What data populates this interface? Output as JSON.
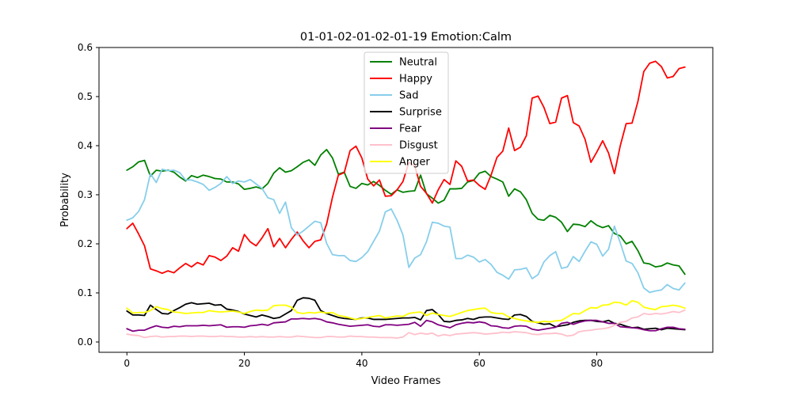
{
  "chart_data": {
    "type": "line",
    "title": "01-01-02-01-02-01-19 Emotion:Calm",
    "xlabel": "Video Frames",
    "ylabel": "Probability",
    "xlim": [
      -4.75,
      99.75
    ],
    "ylim": [
      -0.021,
      0.6
    ],
    "xticks": [
      0,
      20,
      40,
      60,
      80
    ],
    "yticks": [
      0.0,
      0.1,
      0.2,
      0.3,
      0.4,
      0.5,
      0.6
    ],
    "ytick_labels": [
      "0.0",
      "0.1",
      "0.2",
      "0.3",
      "0.4",
      "0.5",
      "0.6"
    ],
    "grid": false,
    "legend_position": "upper center",
    "x": [
      0,
      1,
      2,
      3,
      4,
      5,
      6,
      7,
      8,
      9,
      10,
      11,
      12,
      13,
      14,
      15,
      16,
      17,
      18,
      19,
      20,
      21,
      22,
      23,
      24,
      25,
      26,
      27,
      28,
      29,
      30,
      31,
      32,
      33,
      34,
      35,
      36,
      37,
      38,
      39,
      40,
      41,
      42,
      43,
      44,
      45,
      46,
      47,
      48,
      49,
      50,
      51,
      52,
      53,
      54,
      55,
      56,
      57,
      58,
      59,
      60,
      61,
      62,
      63,
      64,
      65,
      66,
      67,
      68,
      69,
      70,
      71,
      72,
      73,
      74,
      75,
      76,
      77,
      78,
      79,
      80,
      81,
      82,
      83,
      84,
      85,
      86,
      87,
      88,
      89,
      90,
      91,
      92,
      93,
      94,
      95
    ],
    "series": [
      {
        "name": "Neutral",
        "color": "#008000",
        "values": [
          0.35,
          0.357,
          0.367,
          0.37,
          0.338,
          0.35,
          0.348,
          0.35,
          0.346,
          0.336,
          0.328,
          0.339,
          0.335,
          0.34,
          0.337,
          0.333,
          0.332,
          0.326,
          0.326,
          0.322,
          0.311,
          0.313,
          0.316,
          0.312,
          0.323,
          0.344,
          0.355,
          0.346,
          0.349,
          0.357,
          0.366,
          0.371,
          0.36,
          0.381,
          0.392,
          0.375,
          0.342,
          0.346,
          0.317,
          0.313,
          0.323,
          0.32,
          0.327,
          0.319,
          0.309,
          0.301,
          0.31,
          0.305,
          0.307,
          0.308,
          0.34,
          0.302,
          0.293,
          0.283,
          0.289,
          0.312,
          0.312,
          0.313,
          0.326,
          0.329,
          0.344,
          0.348,
          0.337,
          0.332,
          0.326,
          0.297,
          0.312,
          0.306,
          0.29,
          0.262,
          0.25,
          0.248,
          0.258,
          0.254,
          0.244,
          0.225,
          0.24,
          0.239,
          0.235,
          0.247,
          0.238,
          0.233,
          0.237,
          0.221,
          0.216,
          0.2,
          0.205,
          0.186,
          0.161,
          0.159,
          0.153,
          0.155,
          0.161,
          0.157,
          0.155,
          0.138
        ]
      },
      {
        "name": "Happy",
        "color": "#ff0000",
        "values": [
          0.231,
          0.242,
          0.22,
          0.196,
          0.149,
          0.145,
          0.14,
          0.145,
          0.141,
          0.151,
          0.16,
          0.153,
          0.162,
          0.157,
          0.176,
          0.173,
          0.166,
          0.175,
          0.192,
          0.185,
          0.219,
          0.204,
          0.196,
          0.212,
          0.231,
          0.194,
          0.211,
          0.192,
          0.209,
          0.224,
          0.206,
          0.192,
          0.205,
          0.208,
          0.24,
          0.295,
          0.34,
          0.345,
          0.39,
          0.399,
          0.375,
          0.332,
          0.318,
          0.33,
          0.297,
          0.298,
          0.31,
          0.327,
          0.366,
          0.359,
          0.317,
          0.303,
          0.283,
          0.31,
          0.331,
          0.321,
          0.369,
          0.358,
          0.328,
          0.33,
          0.319,
          0.311,
          0.34,
          0.376,
          0.389,
          0.436,
          0.39,
          0.397,
          0.42,
          0.497,
          0.501,
          0.478,
          0.445,
          0.448,
          0.497,
          0.502,
          0.447,
          0.44,
          0.413,
          0.366,
          0.387,
          0.41,
          0.385,
          0.343,
          0.4,
          0.445,
          0.446,
          0.49,
          0.551,
          0.568,
          0.572,
          0.561,
          0.538,
          0.541,
          0.557,
          0.56
        ]
      },
      {
        "name": "Sad",
        "color": "#87ceeb",
        "values": [
          0.248,
          0.253,
          0.266,
          0.29,
          0.343,
          0.325,
          0.352,
          0.349,
          0.35,
          0.345,
          0.33,
          0.33,
          0.326,
          0.321,
          0.309,
          0.315,
          0.323,
          0.337,
          0.323,
          0.328,
          0.326,
          0.331,
          0.322,
          0.313,
          0.294,
          0.29,
          0.262,
          0.285,
          0.233,
          0.218,
          0.226,
          0.236,
          0.246,
          0.243,
          0.201,
          0.178,
          0.176,
          0.176,
          0.166,
          0.164,
          0.172,
          0.184,
          0.205,
          0.226,
          0.265,
          0.271,
          0.248,
          0.218,
          0.152,
          0.171,
          0.178,
          0.204,
          0.244,
          0.242,
          0.236,
          0.234,
          0.17,
          0.17,
          0.177,
          0.173,
          0.163,
          0.168,
          0.158,
          0.142,
          0.136,
          0.128,
          0.147,
          0.148,
          0.151,
          0.129,
          0.137,
          0.163,
          0.176,
          0.184,
          0.15,
          0.153,
          0.174,
          0.164,
          0.185,
          0.204,
          0.199,
          0.175,
          0.189,
          0.236,
          0.202,
          0.165,
          0.16,
          0.141,
          0.11,
          0.101,
          0.104,
          0.106,
          0.117,
          0.109,
          0.106,
          0.12
        ]
      },
      {
        "name": "Surprise",
        "color": "#000000",
        "values": [
          0.063,
          0.055,
          0.055,
          0.054,
          0.075,
          0.066,
          0.058,
          0.057,
          0.064,
          0.07,
          0.077,
          0.08,
          0.077,
          0.078,
          0.079,
          0.075,
          0.076,
          0.067,
          0.065,
          0.062,
          0.057,
          0.054,
          0.051,
          0.055,
          0.052,
          0.048,
          0.05,
          0.057,
          0.064,
          0.085,
          0.09,
          0.089,
          0.085,
          0.064,
          0.058,
          0.054,
          0.05,
          0.048,
          0.047,
          0.046,
          0.049,
          0.049,
          0.046,
          0.046,
          0.046,
          0.047,
          0.048,
          0.049,
          0.049,
          0.05,
          0.045,
          0.064,
          0.066,
          0.056,
          0.042,
          0.041,
          0.044,
          0.045,
          0.048,
          0.046,
          0.05,
          0.051,
          0.051,
          0.049,
          0.047,
          0.046,
          0.055,
          0.056,
          0.052,
          0.042,
          0.039,
          0.036,
          0.037,
          0.031,
          0.033,
          0.035,
          0.04,
          0.043,
          0.044,
          0.044,
          0.042,
          0.041,
          0.044,
          0.038,
          0.036,
          0.032,
          0.029,
          0.03,
          0.026,
          0.027,
          0.028,
          0.025,
          0.028,
          0.027,
          0.026,
          0.025
        ]
      },
      {
        "name": "Fear",
        "color": "#800080",
        "values": [
          0.027,
          0.022,
          0.024,
          0.024,
          0.029,
          0.033,
          0.03,
          0.029,
          0.032,
          0.031,
          0.033,
          0.033,
          0.033,
          0.034,
          0.033,
          0.034,
          0.035,
          0.03,
          0.031,
          0.031,
          0.03,
          0.033,
          0.034,
          0.036,
          0.034,
          0.039,
          0.04,
          0.041,
          0.047,
          0.047,
          0.048,
          0.047,
          0.048,
          0.046,
          0.041,
          0.039,
          0.036,
          0.034,
          0.032,
          0.033,
          0.034,
          0.035,
          0.032,
          0.031,
          0.035,
          0.035,
          0.034,
          0.035,
          0.036,
          0.04,
          0.032,
          0.044,
          0.041,
          0.035,
          0.032,
          0.029,
          0.035,
          0.038,
          0.04,
          0.039,
          0.041,
          0.039,
          0.033,
          0.032,
          0.029,
          0.028,
          0.032,
          0.033,
          0.032,
          0.026,
          0.024,
          0.026,
          0.028,
          0.03,
          0.038,
          0.04,
          0.036,
          0.04,
          0.043,
          0.044,
          0.044,
          0.041,
          0.038,
          0.038,
          0.031,
          0.03,
          0.029,
          0.028,
          0.025,
          0.023,
          0.023,
          0.027,
          0.03,
          0.03,
          0.027,
          0.026
        ]
      },
      {
        "name": "Disgust",
        "color": "#ffc0cb",
        "values": [
          0.016,
          0.014,
          0.013,
          0.009,
          0.011,
          0.012,
          0.01,
          0.011,
          0.011,
          0.012,
          0.012,
          0.011,
          0.012,
          0.012,
          0.011,
          0.011,
          0.012,
          0.011,
          0.011,
          0.01,
          0.01,
          0.011,
          0.01,
          0.011,
          0.01,
          0.01,
          0.011,
          0.01,
          0.01,
          0.012,
          0.011,
          0.01,
          0.009,
          0.009,
          0.011,
          0.011,
          0.01,
          0.01,
          0.012,
          0.011,
          0.011,
          0.01,
          0.01,
          0.009,
          0.009,
          0.009,
          0.008,
          0.01,
          0.019,
          0.015,
          0.018,
          0.016,
          0.018,
          0.012,
          0.015,
          0.013,
          0.016,
          0.017,
          0.018,
          0.019,
          0.018,
          0.016,
          0.017,
          0.018,
          0.02,
          0.019,
          0.021,
          0.02,
          0.019,
          0.016,
          0.015,
          0.017,
          0.017,
          0.018,
          0.016,
          0.012,
          0.014,
          0.021,
          0.023,
          0.024,
          0.026,
          0.027,
          0.029,
          0.034,
          0.04,
          0.042,
          0.049,
          0.051,
          0.058,
          0.056,
          0.058,
          0.057,
          0.059,
          0.062,
          0.06,
          0.065
        ]
      },
      {
        "name": "Anger",
        "color": "#ffff00",
        "values": [
          0.069,
          0.059,
          0.06,
          0.06,
          0.064,
          0.072,
          0.068,
          0.066,
          0.061,
          0.06,
          0.058,
          0.059,
          0.06,
          0.06,
          0.064,
          0.062,
          0.061,
          0.062,
          0.063,
          0.061,
          0.058,
          0.062,
          0.065,
          0.064,
          0.065,
          0.074,
          0.075,
          0.075,
          0.071,
          0.06,
          0.058,
          0.06,
          0.059,
          0.061,
          0.059,
          0.06,
          0.054,
          0.052,
          0.049,
          0.046,
          0.048,
          0.05,
          0.052,
          0.054,
          0.049,
          0.051,
          0.053,
          0.052,
          0.058,
          0.06,
          0.061,
          0.054,
          0.059,
          0.056,
          0.054,
          0.052,
          0.056,
          0.06,
          0.064,
          0.066,
          0.068,
          0.069,
          0.06,
          0.058,
          0.058,
          0.051,
          0.048,
          0.045,
          0.043,
          0.041,
          0.04,
          0.042,
          0.041,
          0.043,
          0.044,
          0.051,
          0.058,
          0.057,
          0.064,
          0.07,
          0.069,
          0.075,
          0.076,
          0.081,
          0.08,
          0.075,
          0.084,
          0.081,
          0.071,
          0.068,
          0.066,
          0.072,
          0.073,
          0.075,
          0.073,
          0.069
        ]
      }
    ]
  }
}
